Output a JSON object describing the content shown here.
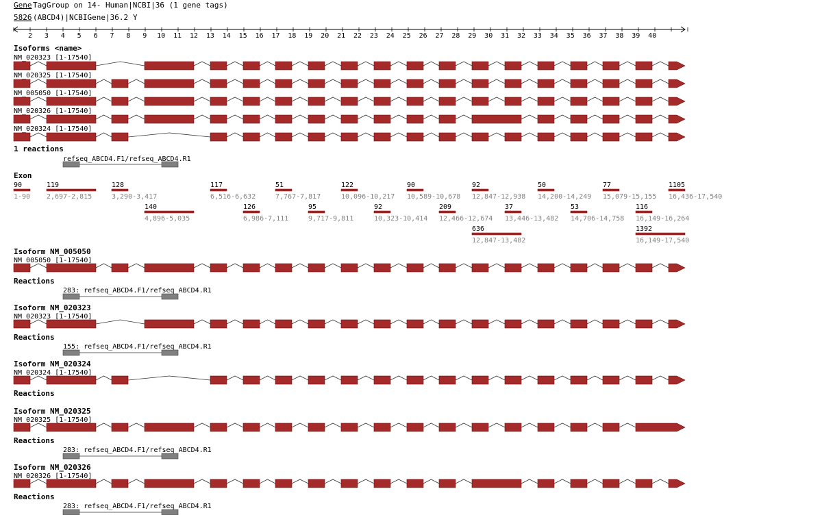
{
  "header": {
    "link_gene": "Gene",
    "title_rest": "TagGroup on 14- Human|NCBI|36 (1 gene tags)",
    "gene_id": "5826",
    "gene_rest": "(ABCD4)|NCBIGene|36.2",
    "gene_suffix": "Y"
  },
  "ruler": {
    "ticks": [
      "2",
      "3",
      "4",
      "5",
      "6",
      "7",
      "8",
      "9",
      "10",
      "11",
      "12",
      "13",
      "14",
      "15",
      "16",
      "17",
      "18",
      "19",
      "20",
      "21",
      "22",
      "23",
      "24",
      "25",
      "26",
      "27",
      "28",
      "29",
      "30",
      "31",
      "32",
      "33",
      "34",
      "35",
      "36",
      "37",
      "38",
      "39",
      "40"
    ]
  },
  "colors": {
    "exon": "#a52a2a",
    "exon_border": "#6b0f0f",
    "primer": "#808080",
    "line": "#333333",
    "muted": "#808080"
  },
  "section_isoforms": "Isoforms <name>",
  "section_reactions": "1 reactions",
  "section_exon": "Exon",
  "reactions_label": "Reactions",
  "overview_isoforms": [
    {
      "label": "NM_020323 [1-17540]",
      "skip": "b"
    },
    {
      "label": "NM_020325 [1-17540]",
      "skip": "none"
    },
    {
      "label": "NM_005050 [1-17540]",
      "skip": "none"
    },
    {
      "label": "NM_020326 [1-17540]",
      "skip": "none",
      "merged": true
    },
    {
      "label": "NM_020324 [1-17540]",
      "skip": "c"
    }
  ],
  "overview_reaction": {
    "label": "refseq_ABCD4.F1/refseq_ABCD4.R1"
  },
  "exons": [
    {
      "size": "90",
      "range": "1-90",
      "pos": "e1",
      "row": 0
    },
    {
      "size": "119",
      "range": "2,697-2,815",
      "pos": "e2",
      "row": 0
    },
    {
      "size": "128",
      "range": "3,290-3,417",
      "pos": "e3",
      "row": 0
    },
    {
      "size": "140",
      "range": "4,896-5,035",
      "pos": "e4",
      "row": 1
    },
    {
      "size": "117",
      "range": "6,516-6,632",
      "pos": "e5",
      "row": 0
    },
    {
      "size": "126",
      "range": "6,986-7,111",
      "pos": "e6",
      "row": 1
    },
    {
      "size": "51",
      "range": "7,767-7,817",
      "pos": "e7",
      "row": 0
    },
    {
      "size": "95",
      "range": "9,717-9,811",
      "pos": "e8",
      "row": 1
    },
    {
      "size": "122",
      "range": "10,096-10,217",
      "pos": "e9",
      "row": 0
    },
    {
      "size": "92",
      "range": "10,323-10,414",
      "pos": "e10",
      "row": 1
    },
    {
      "size": "90",
      "range": "10,589-10,678",
      "pos": "e11",
      "row": 0
    },
    {
      "size": "209",
      "range": "12,466-12,674",
      "pos": "e12",
      "row": 1
    },
    {
      "size": "92",
      "range": "12,847-12,938",
      "pos": "e13",
      "row": 0
    },
    {
      "size": "636",
      "range": "12,847-13,482",
      "pos": "e13L",
      "row": 2
    },
    {
      "size": "37",
      "range": "13,446-13,482",
      "pos": "e14",
      "row": 1
    },
    {
      "size": "50",
      "range": "14,200-14,249",
      "pos": "e15",
      "row": 0
    },
    {
      "size": "53",
      "range": "14,706-14,758",
      "pos": "e16",
      "row": 1
    },
    {
      "size": "77",
      "range": "15,079-15,155",
      "pos": "e17",
      "row": 0
    },
    {
      "size": "116",
      "range": "16,149-16,264",
      "pos": "e18",
      "row": 1
    },
    {
      "size": "1392",
      "range": "16,149-17,540",
      "pos": "e18L",
      "row": 2
    },
    {
      "size": "1105",
      "range": "16,436-17,540",
      "pos": "e19",
      "row": 0
    }
  ],
  "detail_sections": [
    {
      "title": "Isoform NM_005050",
      "label": "NM_005050 [1-17540]",
      "skip": "none",
      "reaction": "283: refseq_ABCD4.F1/refseq_ABCD4.R1"
    },
    {
      "title": "Isoform NM_020323",
      "label": "NM_020323 [1-17540]",
      "skip": "b",
      "reaction": "155: refseq_ABCD4.F1/refseq_ABCD4.R1"
    },
    {
      "title": "Isoform NM_020324",
      "label": "NM_020324 [1-17540]",
      "skip": "c",
      "reaction": ""
    },
    {
      "title": "Isoform NM_020325",
      "label": "NM_020325 [1-17540]",
      "skip": "none",
      "reaction": "283: refseq_ABCD4.F1/refseq_ABCD4.R1",
      "arrowlong": true
    },
    {
      "title": "Isoform NM_020326",
      "label": "NM_020326 [1-17540]",
      "skip": "none",
      "merged": true,
      "reaction": "283: refseq_ABCD4.F1/refseq_ABCD4.R1"
    }
  ]
}
